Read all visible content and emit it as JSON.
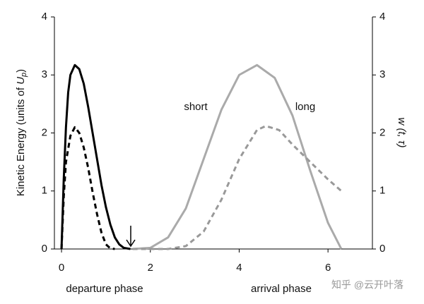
{
  "chart_data": {
    "type": "line",
    "xlim": [
      -0.16,
      7
    ],
    "xticks": [
      0,
      2,
      4,
      6
    ],
    "ylim": [
      0,
      4
    ],
    "yticks": [
      0,
      1,
      2,
      3,
      4
    ],
    "y2lim": [
      0,
      4
    ],
    "y2ticks": [
      0,
      1,
      2,
      3,
      4
    ],
    "y_label": "Kinetic Energy (units of ",
    "y_label_symbol": "U",
    "y_label_subscript": "p",
    "y_label_end": ")",
    "y2_label": "w (t, τ)",
    "annotations": {
      "short": "short",
      "long": "long",
      "departure": "departure phase",
      "arrival": "arrival phase",
      "watermark": "知乎 @云开叶落"
    },
    "series": [
      {
        "color": "#000000",
        "dash": false,
        "x": [
          0,
          0.05,
          0.1,
          0.15,
          0.2,
          0.3,
          0.4,
          0.5,
          0.6,
          0.7,
          0.8,
          0.9,
          1.0,
          1.1,
          1.2,
          1.3,
          1.4,
          1.55
        ],
        "values": [
          0,
          1.2,
          2.1,
          2.7,
          3.0,
          3.17,
          3.1,
          2.85,
          2.45,
          2.0,
          1.55,
          1.1,
          0.72,
          0.42,
          0.2,
          0.08,
          0.02,
          0
        ]
      },
      {
        "color": "#000000",
        "dash": true,
        "axis": "y2",
        "x": [
          0,
          0.05,
          0.1,
          0.2,
          0.3,
          0.4,
          0.5,
          0.6,
          0.7,
          0.8,
          0.9,
          1.0,
          1.1,
          1.2
        ],
        "values": [
          0,
          0.9,
          1.5,
          1.95,
          2.1,
          2.0,
          1.75,
          1.4,
          0.98,
          0.6,
          0.28,
          0.08,
          0.01,
          0
        ]
      },
      {
        "color": "#aaaaaa",
        "dash": false,
        "x": [
          1.6,
          2.0,
          2.4,
          2.8,
          3.2,
          3.6,
          4.0,
          4.4,
          4.8,
          5.2,
          5.6,
          6.0,
          6.3
        ],
        "values": [
          0,
          0.02,
          0.2,
          0.7,
          1.55,
          2.4,
          3.0,
          3.17,
          2.95,
          2.3,
          1.35,
          0.45,
          0
        ]
      },
      {
        "color": "#999999",
        "dash": true,
        "axis": "y2",
        "x": [
          1.6,
          2.4,
          2.8,
          3.2,
          3.6,
          4.0,
          4.4,
          4.6,
          4.9,
          5.2,
          5.6,
          6.0,
          6.3
        ],
        "values": [
          0,
          0,
          0.05,
          0.3,
          0.85,
          1.55,
          2.05,
          2.12,
          2.05,
          1.8,
          1.5,
          1.2,
          1.0
        ]
      }
    ]
  }
}
